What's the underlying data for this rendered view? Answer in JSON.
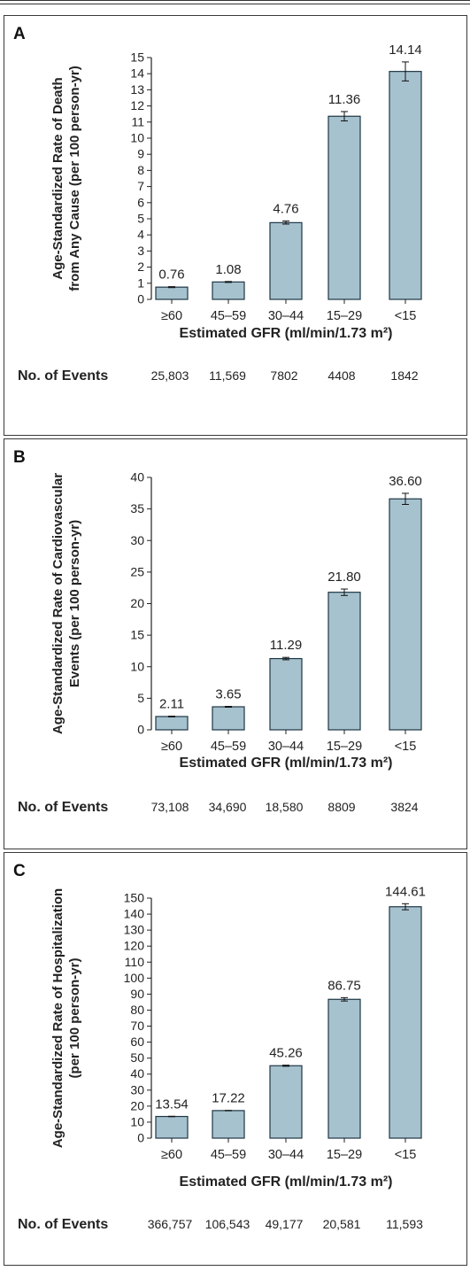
{
  "colors": {
    "bar_fill": "#a7c2cf",
    "bar_stroke": "#1e3644",
    "axis": "#222222",
    "panel_border": "#3a3a3a"
  },
  "chart_data": [
    {
      "panel_label": "A",
      "type": "bar",
      "ylabel_line1": "Age-Standardized Rate of Death",
      "ylabel_line2": "from Any Cause (per 100 person-yr)",
      "xlabel": "Estimated GFR (ml/min/1.73 m²)",
      "categories": [
        "≥60",
        "45–59",
        "30–44",
        "15–29",
        "<15"
      ],
      "values": [
        0.76,
        1.08,
        4.76,
        11.36,
        14.14
      ],
      "value_labels": [
        "0.76",
        "1.08",
        "4.76",
        "11.36",
        "14.14"
      ],
      "error_bars": [
        [
          0.73,
          0.79
        ],
        [
          1.05,
          1.11
        ],
        [
          4.67,
          4.86
        ],
        [
          11.07,
          11.65
        ],
        [
          13.55,
          14.73
        ]
      ],
      "ylim": [
        0,
        15
      ],
      "yticks": [
        0,
        1,
        2,
        3,
        4,
        5,
        6,
        7,
        8,
        9,
        10,
        11,
        12,
        13,
        14,
        15
      ],
      "events_label": "No. of Events",
      "events": [
        "25,803",
        "11,569",
        "7802",
        "4408",
        "1842"
      ]
    },
    {
      "panel_label": "B",
      "type": "bar",
      "ylabel_line1": "Age-Standardized Rate of Cardiovascular",
      "ylabel_line2": "Events (per 100 person-yr)",
      "xlabel": "Estimated GFR (ml/min/1.73 m²)",
      "categories": [
        "≥60",
        "45–59",
        "30–44",
        "15–29",
        "<15"
      ],
      "values": [
        2.11,
        3.65,
        11.29,
        21.8,
        36.6
      ],
      "value_labels": [
        "2.11",
        "3.65",
        "11.29",
        "21.80",
        "36.60"
      ],
      "error_bars": [
        [
          2.05,
          2.17
        ],
        [
          3.58,
          3.72
        ],
        [
          11.1,
          11.48
        ],
        [
          21.29,
          22.31
        ],
        [
          35.72,
          37.48
        ]
      ],
      "ylim": [
        0,
        40
      ],
      "yticks": [
        0,
        5,
        10,
        15,
        20,
        25,
        30,
        35,
        40
      ],
      "events_label": "No. of Events",
      "events": [
        "73,108",
        "34,690",
        "18,580",
        "8809",
        "3824"
      ]
    },
    {
      "panel_label": "C",
      "type": "bar",
      "ylabel_line1": "Age-Standardized Rate of Hospitalization",
      "ylabel_line2": "(per 100 person-yr)",
      "xlabel": "Estimated GFR (ml/min/1.73 m²)",
      "categories": [
        "≥60",
        "45–59",
        "30–44",
        "15–29",
        "<15"
      ],
      "values": [
        13.54,
        17.22,
        45.26,
        86.75,
        144.61
      ],
      "value_labels": [
        "13.54",
        "17.22",
        "45.26",
        "86.75",
        "144.61"
      ],
      "error_bars": [
        [
          13.4,
          13.68
        ],
        [
          17.1,
          17.34
        ],
        [
          44.9,
          45.62
        ],
        [
          85.7,
          87.8
        ],
        [
          142.7,
          146.5
        ]
      ],
      "ylim": [
        0,
        150
      ],
      "yticks": [
        0,
        10,
        20,
        30,
        40,
        50,
        60,
        70,
        80,
        90,
        100,
        110,
        120,
        130,
        140,
        150
      ],
      "events_label": "No. of Events",
      "events": [
        "366,757",
        "106,543",
        "49,177",
        "20,581",
        "11,593"
      ]
    }
  ]
}
